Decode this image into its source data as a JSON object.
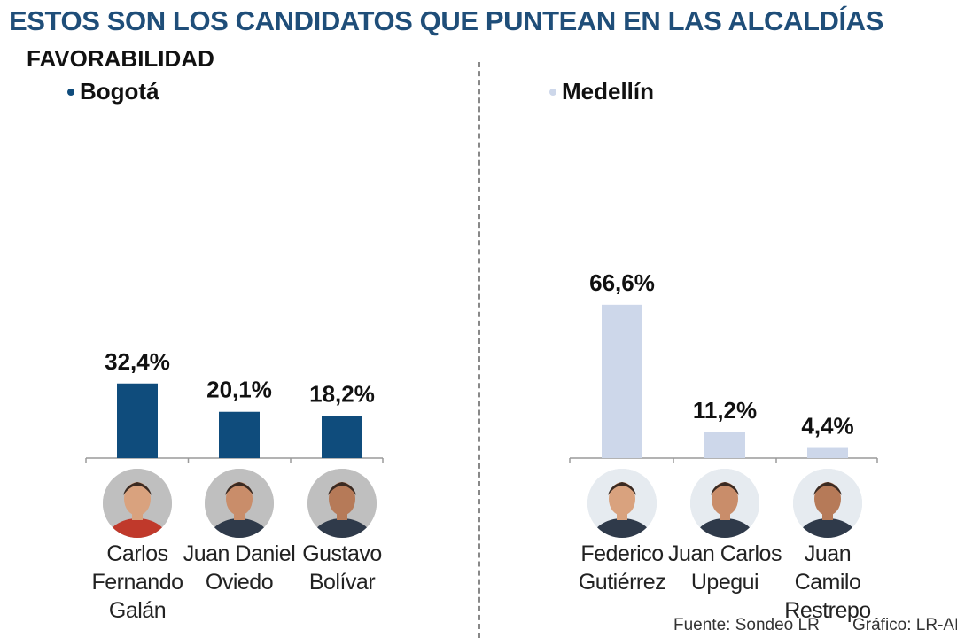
{
  "title": "ESTOS SON LOS CANDIDATOS QUE PUNTEAN EN LAS ALCALDÍAS",
  "subtitle": "FAVORABILIDAD",
  "source": "Fuente: Sondeo LR",
  "credit": "Gráfico: LR-AL",
  "colors": {
    "title": "#1f4e79",
    "bogota": "#0f4c7c",
    "medellin": "#cdd7ea"
  },
  "chart_data": [
    {
      "type": "bar",
      "title": "",
      "legend": "Bogotá",
      "color": "#0f4c7c",
      "ylim": [
        0,
        70
      ],
      "categories": [
        "Carlos Fernando Galán",
        "Juan Daniel Oviedo",
        "Gustavo Bolívar"
      ],
      "category_lines": [
        [
          "Carlos",
          "Fernando",
          "Galán"
        ],
        [
          "Juan Daniel",
          "Oviedo"
        ],
        [
          "Gustavo",
          "Bolívar"
        ]
      ],
      "values": [
        32.4,
        20.1,
        18.2
      ],
      "value_labels": [
        "32,4%",
        "20,1%",
        "18,2%"
      ]
    },
    {
      "type": "bar",
      "title": "",
      "legend": "Medellín",
      "color": "#cdd7ea",
      "ylim": [
        0,
        70
      ],
      "categories": [
        "Federico Gutiérrez",
        "Juan Carlos Upegui",
        "Juan Camilo Restrepo"
      ],
      "category_lines": [
        [
          "Federico",
          "Gutiérrez"
        ],
        [
          "Juan Carlos",
          "Upegui"
        ],
        [
          "Juan Camilo",
          "Restrepo"
        ]
      ],
      "values": [
        66.6,
        11.2,
        4.4
      ],
      "value_labels": [
        "66,6%",
        "11,2%",
        "4,4%"
      ]
    }
  ]
}
